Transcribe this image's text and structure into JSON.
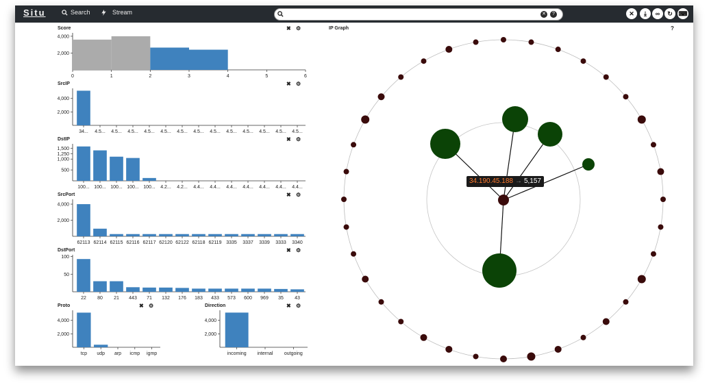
{
  "app": {
    "title": "Situ"
  },
  "nav": {
    "search_label": "Search",
    "stream_label": "Stream"
  },
  "search": {
    "value": "",
    "clear_icon": "close-icon",
    "help_icon": "help-icon"
  },
  "toolbar": {
    "icons": [
      "close-icon",
      "download-icon",
      "link-icon",
      "refresh-icon",
      "keyboard-icon"
    ]
  },
  "colors": {
    "bar": "#3f82be",
    "bar_grey": "#ababab",
    "node_large": "#0b4306",
    "node_small": "#3a0b0b"
  },
  "panels": {
    "score": {
      "title": "Score"
    },
    "srcip": {
      "title": "SrcIP"
    },
    "dstip": {
      "title": "DstIP"
    },
    "srcport": {
      "title": "SrcPort"
    },
    "dstport": {
      "title": "DstPort"
    },
    "proto": {
      "title": "Proto"
    },
    "direction": {
      "title": "Direction"
    }
  },
  "graph": {
    "title": "IP Graph",
    "help": "?",
    "tooltip_ip": "34.190.45.188",
    "tooltip_arrow": "→",
    "tooltip_count": "5,157"
  },
  "chart_data": [
    {
      "id": "score",
      "type": "bar",
      "title": "Score",
      "bins": [
        [
          0,
          1
        ],
        [
          1,
          2
        ],
        [
          2,
          3
        ],
        [
          3,
          4
        ]
      ],
      "values": [
        3600,
        4000,
        2650,
        2400
      ],
      "colors": [
        "grey",
        "grey",
        "blue",
        "blue"
      ],
      "xlim": [
        0,
        6
      ],
      "xticks": [
        "0",
        "1",
        "2",
        "3",
        "4",
        "5",
        "6"
      ],
      "yticks": [
        {
          "v": 2000,
          "label": "2,000"
        },
        {
          "v": 4000,
          "label": "4,000"
        }
      ],
      "ylim": [
        0,
        4400
      ]
    },
    {
      "id": "srcip",
      "type": "bar",
      "title": "SrcIP",
      "categories": [
        "34...",
        "4.5...",
        "4.5...",
        "4.5...",
        "4.5...",
        "4.5...",
        "4.5...",
        "4.5...",
        "4.5...",
        "4.5...",
        "4.5...",
        "4.5...",
        "4.5...",
        "4.5..."
      ],
      "values": [
        5150,
        0,
        0,
        0,
        0,
        0,
        0,
        0,
        0,
        0,
        0,
        0,
        0,
        0
      ],
      "yticks": [
        {
          "v": 2000,
          "label": "2,000"
        },
        {
          "v": 4000,
          "label": "4,000"
        }
      ],
      "ylim": [
        0,
        5500
      ]
    },
    {
      "id": "dstip",
      "type": "bar",
      "title": "DstIP",
      "categories": [
        "100...",
        "100...",
        "100...",
        "100...",
        "100...",
        "4.2...",
        "4.2...",
        "4.4...",
        "4.4...",
        "4.4...",
        "4.4...",
        "4.4...",
        "4.4...",
        "4.4..."
      ],
      "values": [
        1580,
        1400,
        1110,
        1050,
        130,
        0,
        0,
        0,
        0,
        0,
        0,
        0,
        0,
        0
      ],
      "yticks": [
        {
          "v": 500,
          "label": "500"
        },
        {
          "v": 1000,
          "label": "1,000"
        },
        {
          "v": 1250,
          "label": "1,250"
        },
        {
          "v": 1500,
          "label": "1,500"
        }
      ],
      "ylim": [
        0,
        1700
      ]
    },
    {
      "id": "srcport",
      "type": "bar",
      "title": "SrcPort",
      "categories": [
        "62113",
        "62114",
        "62115",
        "62116",
        "62117",
        "62120",
        "62122",
        "62118",
        "62119",
        "3335",
        "3337",
        "3339",
        "3333",
        "3340"
      ],
      "values": [
        4000,
        950,
        280,
        280,
        280,
        280,
        280,
        280,
        280,
        280,
        280,
        280,
        280,
        280
      ],
      "yticks": [
        {
          "v": 2000,
          "label": "2,000"
        },
        {
          "v": 4000,
          "label": "4,000"
        }
      ],
      "ylim": [
        0,
        4600
      ]
    },
    {
      "id": "dstport",
      "type": "bar",
      "title": "DstPort",
      "categories": [
        "22",
        "80",
        "21",
        "443",
        "71",
        "132",
        "176",
        "183",
        "433",
        "573",
        "600",
        "969",
        "35",
        "43"
      ],
      "values": [
        93,
        30,
        30,
        13,
        12,
        12,
        11,
        9,
        9,
        9,
        9,
        9,
        8,
        7
      ],
      "yticks": [
        {
          "v": 50,
          "label": "50"
        },
        {
          "v": 100,
          "label": "100"
        }
      ],
      "ylim": [
        0,
        105
      ]
    },
    {
      "id": "proto",
      "type": "bar",
      "title": "Proto",
      "categories": [
        "tcp",
        "udp",
        "arp",
        "icmp",
        "igmp"
      ],
      "values": [
        5150,
        380,
        0,
        0,
        0
      ],
      "yticks": [
        {
          "v": 2000,
          "label": "2,000"
        },
        {
          "v": 4000,
          "label": "4,000"
        }
      ],
      "ylim": [
        0,
        5500
      ]
    },
    {
      "id": "direction",
      "type": "bar",
      "title": "Direction",
      "categories": [
        "incoming",
        "internal",
        "outgoing"
      ],
      "values": [
        5157,
        0,
        0
      ],
      "yticks": [
        {
          "v": 2000,
          "label": "2,000"
        },
        {
          "v": 4000,
          "label": "4,000"
        }
      ],
      "ylim": [
        0,
        5500
      ]
    }
  ]
}
